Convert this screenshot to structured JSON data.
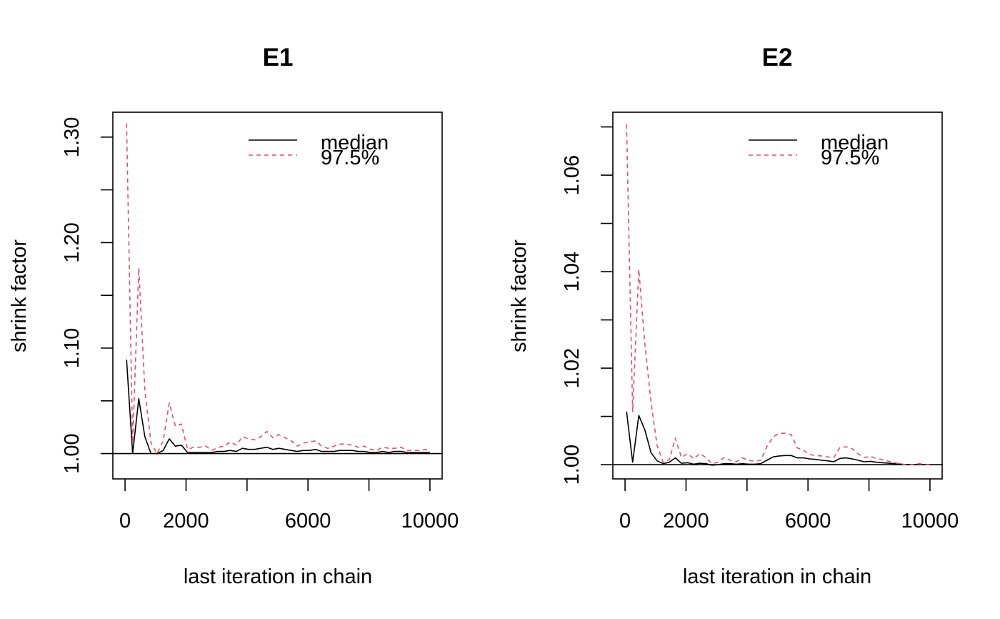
{
  "chart_data": [
    {
      "type": "line",
      "title": "E1",
      "xlabel": "last iteration in chain",
      "ylabel": "shrink factor",
      "xlim": [
        -400,
        10400
      ],
      "ylim": [
        0.976,
        1.3236
      ],
      "x_ticks": [
        0,
        2000,
        4000,
        6000,
        8000,
        10000
      ],
      "x_tick_labels": [
        "0",
        "2000",
        "",
        "6000",
        "",
        "10000"
      ],
      "y_ticks": [
        1.0,
        1.05,
        1.1,
        1.15,
        1.2,
        1.25,
        1.3
      ],
      "y_tick_labels": [
        "1.00",
        "",
        "1.10",
        "",
        "1.20",
        "",
        "1.30"
      ],
      "reference_line": 1.0,
      "legend": {
        "position": "top-right",
        "entries": [
          "median",
          "97.5%"
        ]
      },
      "x": [
        50,
        250,
        450,
        650,
        850,
        1050,
        1250,
        1450,
        1650,
        1850,
        2050,
        2250,
        2450,
        2650,
        2850,
        3050,
        3250,
        3450,
        3650,
        3850,
        4050,
        4250,
        4450,
        4650,
        4850,
        5050,
        5250,
        5450,
        5650,
        5850,
        6050,
        6250,
        6450,
        6650,
        6850,
        7050,
        7250,
        7450,
        7650,
        7850,
        8050,
        8250,
        8450,
        8650,
        8850,
        9050,
        9250,
        9450,
        9650,
        9850,
        10000
      ],
      "series": [
        {
          "name": "median",
          "color": "#000000",
          "dash": "solid",
          "values": [
            1.089,
            1.0,
            1.052,
            1.016,
            1.0,
            1.0,
            1.003,
            1.014,
            1.007,
            1.008,
            1.001,
            1.001,
            1.001,
            1.001,
            1.001,
            1.002,
            1.002,
            1.003,
            1.002,
            1.005,
            1.004,
            1.004,
            1.005,
            1.006,
            1.004,
            1.005,
            1.004,
            1.003,
            1.002,
            1.003,
            1.003,
            1.004,
            1.002,
            1.002,
            1.002,
            1.003,
            1.003,
            1.003,
            1.002,
            1.002,
            1.001,
            1.001,
            1.002,
            1.001,
            1.002,
            1.002,
            1.001,
            1.001,
            1.001,
            1.001,
            1.001
          ]
        },
        {
          "name": "97.5%",
          "color": "#e0506a",
          "dash": "dashed",
          "values": [
            1.313,
            1.01,
            1.176,
            1.06,
            1.01,
            1.0,
            1.012,
            1.048,
            1.026,
            1.028,
            1.004,
            1.006,
            1.006,
            1.007,
            1.003,
            1.006,
            1.007,
            1.011,
            1.008,
            1.016,
            1.014,
            1.013,
            1.016,
            1.021,
            1.015,
            1.018,
            1.015,
            1.012,
            1.007,
            1.01,
            1.011,
            1.012,
            1.007,
            1.005,
            1.007,
            1.009,
            1.009,
            1.008,
            1.006,
            1.007,
            1.004,
            1.003,
            1.006,
            1.005,
            1.005,
            1.006,
            1.003,
            1.003,
            1.003,
            1.004,
            1.003
          ]
        }
      ]
    },
    {
      "type": "line",
      "title": "E2",
      "xlabel": "last iteration in chain",
      "ylabel": "shrink factor",
      "xlim": [
        -400,
        10400
      ],
      "ylim": [
        0.99705,
        1.07305
      ],
      "x_ticks": [
        0,
        2000,
        4000,
        6000,
        8000,
        10000
      ],
      "x_tick_labels": [
        "0",
        "2000",
        "",
        "6000",
        "",
        "10000"
      ],
      "y_ticks": [
        1.0,
        1.01,
        1.02,
        1.03,
        1.04,
        1.05,
        1.06,
        1.07
      ],
      "y_tick_labels": [
        "1.00",
        "",
        "1.02",
        "",
        "1.04",
        "",
        "1.06",
        ""
      ],
      "reference_line": 1.0,
      "legend": {
        "position": "top-right",
        "entries": [
          "median",
          "97.5%"
        ]
      },
      "x": [
        50,
        250,
        450,
        650,
        850,
        1050,
        1250,
        1450,
        1650,
        1850,
        2050,
        2250,
        2450,
        2650,
        2850,
        3050,
        3250,
        3450,
        3650,
        3850,
        4050,
        4250,
        4450,
        4650,
        4850,
        5050,
        5250,
        5450,
        5650,
        5850,
        6050,
        6250,
        6450,
        6650,
        6850,
        7050,
        7250,
        7450,
        7650,
        7850,
        8050,
        8250,
        8450,
        8650,
        8850,
        9050,
        9250,
        9450,
        9650,
        9850,
        10000
      ],
      "series": [
        {
          "name": "median",
          "color": "#000000",
          "dash": "solid",
          "values": [
            1.011,
            1.0005,
            1.0102,
            1.0072,
            1.0025,
            1.0008,
            1.0002,
            1.0005,
            1.0014,
            1.0003,
            1.0004,
            1.0001,
            1.0003,
            1.0002,
            0.9999,
            1.0,
            1.0002,
            1.0002,
            1.0001,
            1.0002,
            1.0001,
            1.0001,
            1.0002,
            1.0009,
            1.0016,
            1.0018,
            1.0019,
            1.0019,
            1.0014,
            1.0014,
            1.0012,
            1.0011,
            1.0009,
            1.0008,
            1.0006,
            1.0013,
            1.0014,
            1.0012,
            1.0009,
            1.0006,
            1.0007,
            1.0005,
            1.0004,
            1.0003,
            1.0002,
            1.0001,
            1.0,
            1.0,
            1.0001,
            1.0,
            1.0
          ]
        },
        {
          "name": "97.5%",
          "color": "#e0506a",
          "dash": "dashed",
          "values": [
            1.0705,
            1.011,
            1.0405,
            1.025,
            1.013,
            1.004,
            1.0005,
            1.001,
            1.0055,
            1.0015,
            1.0023,
            1.0012,
            1.0023,
            1.0015,
            1.0002,
            1.0005,
            1.0015,
            1.0009,
            1.0006,
            1.0014,
            1.0009,
            1.0007,
            1.0009,
            1.0037,
            1.0057,
            1.0065,
            1.0065,
            1.0062,
            1.0035,
            1.003,
            1.0021,
            1.0019,
            1.0018,
            1.0016,
            1.0015,
            1.0036,
            1.0037,
            1.0033,
            1.0022,
            1.0015,
            1.0017,
            1.0013,
            1.001,
            1.0007,
            1.0004,
            1.0001,
            1.0,
            1.0,
            1.0002,
            1.0,
            1.0
          ]
        }
      ]
    }
  ]
}
